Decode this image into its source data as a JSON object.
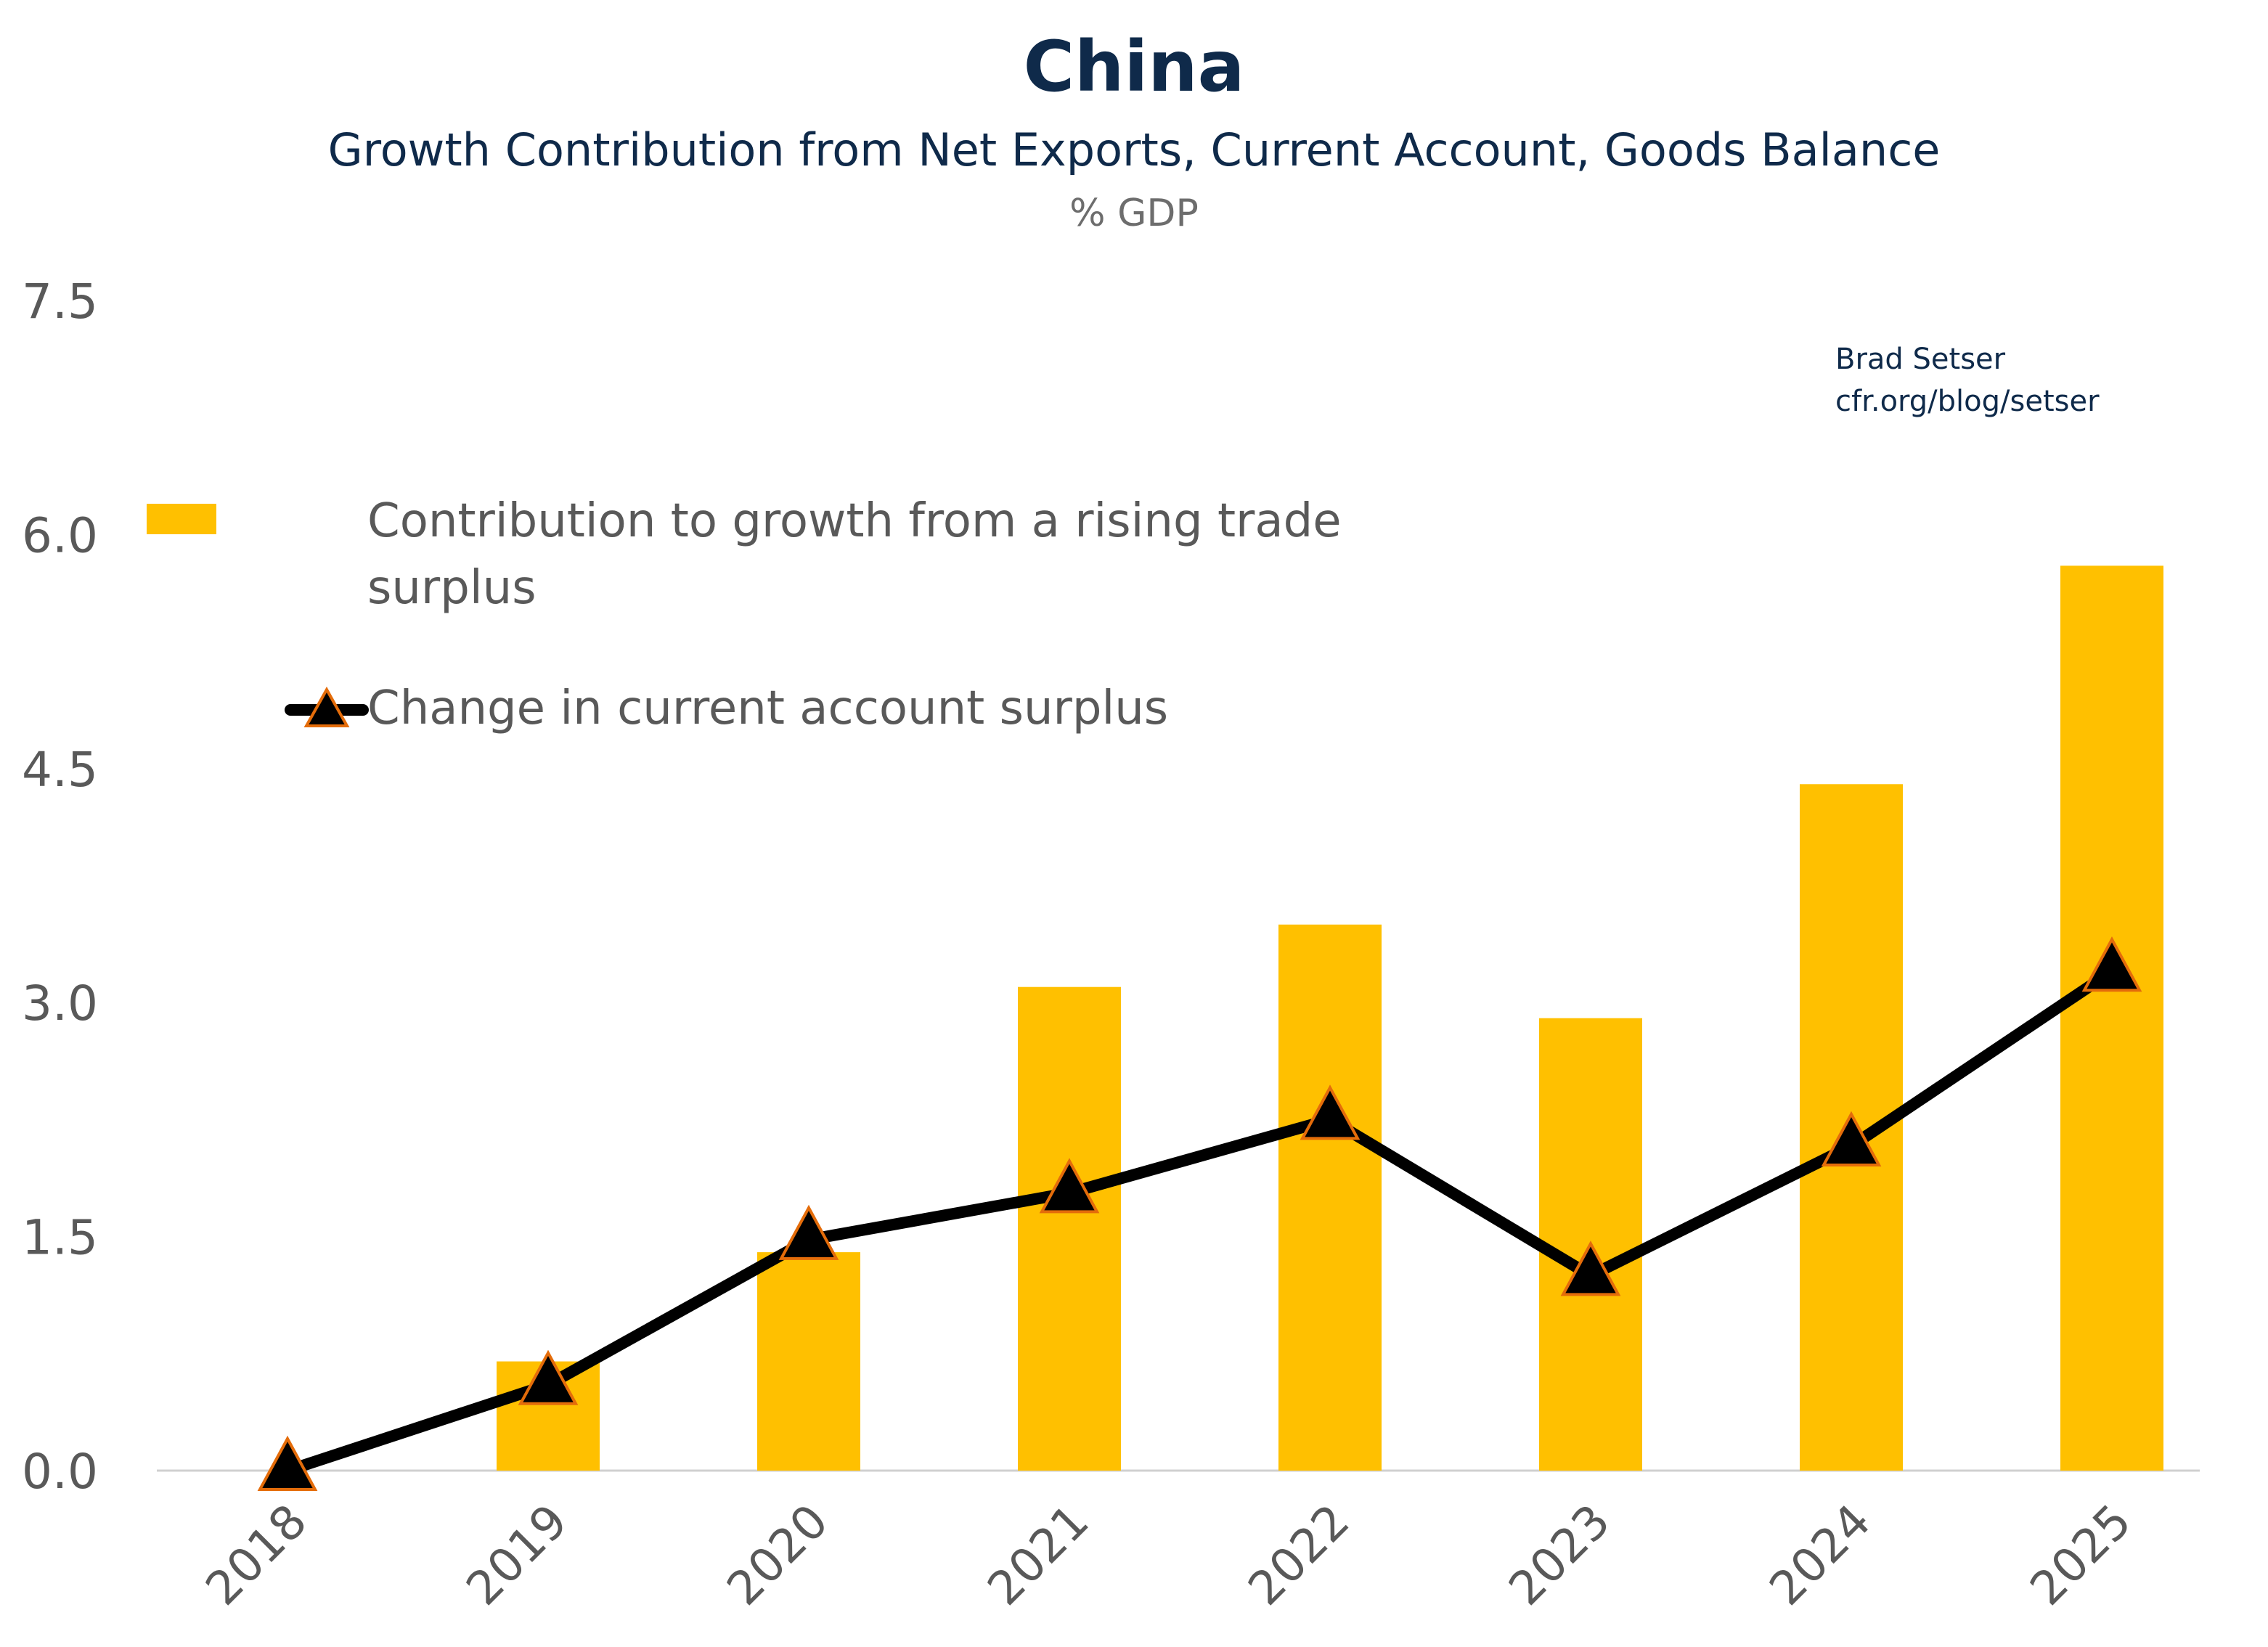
{
  "chart_data": {
    "type": "bar",
    "title": "China",
    "subtitle": "Growth Contribution from Net Exports, Current Account, Goods Balance",
    "unit": "% GDP",
    "credit": [
      "Brad Setser",
      "cfr.org/blog/setser"
    ],
    "categories": [
      "2018",
      "2019",
      "2020",
      "2021",
      "2022",
      "2023",
      "2024",
      "2025"
    ],
    "ylim": [
      0,
      7.5
    ],
    "yticks": [
      "0.0",
      "1.5",
      "3.0",
      "4.5",
      "6.0",
      "7.5"
    ],
    "xlabel": "",
    "ylabel": "",
    "legend_placement": "top-left",
    "series": [
      {
        "name": "Contribution to growth from a rising trade surplus",
        "type": "bar",
        "color": "#FFC000",
        "values": [
          0,
          0.7,
          1.4,
          3.1,
          3.5,
          2.9,
          4.4,
          5.8
        ]
      },
      {
        "name": "Change in current account surplus",
        "type": "line",
        "color": "#000000",
        "marker": "triangle",
        "marker_edge_color": "#E46C0A",
        "values": [
          0,
          0.55,
          1.48,
          1.78,
          2.25,
          1.25,
          2.08,
          3.2
        ]
      }
    ]
  }
}
